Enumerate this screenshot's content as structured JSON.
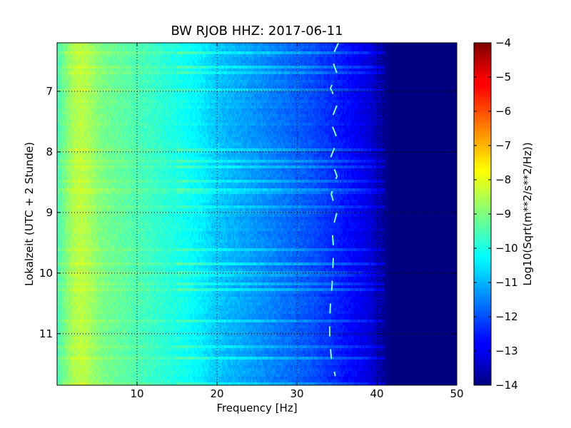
{
  "chart_data": {
    "type": "heatmap",
    "title": "BW RJOB HHZ: 2017-06-11",
    "xlabel": "Frequency [Hz]",
    "ylabel": "Lokalzeit (UTC + 2 Stunde)",
    "xlim": [
      0,
      50
    ],
    "ylim": [
      6.2,
      11.85
    ],
    "y_inverted": true,
    "x_ticks": [
      10,
      20,
      30,
      40,
      50
    ],
    "y_ticks": [
      7,
      8,
      9,
      10,
      11
    ],
    "grid": true,
    "colorbar": {
      "label": "Log10(Sqrt(m**2/s**2/Hz))",
      "range": [
        -14,
        -4
      ],
      "ticks": [
        -4,
        -5,
        -6,
        -7,
        -8,
        -9,
        -10,
        -11,
        -12,
        -13,
        -14
      ],
      "colormap": "jet"
    },
    "spectral_profile": {
      "frequency_hz": [
        0,
        1,
        2,
        3,
        4,
        5,
        6,
        8,
        10,
        12,
        14,
        16,
        18,
        20,
        22,
        24,
        26,
        28,
        30,
        32,
        34,
        36,
        38,
        39,
        40,
        41,
        42,
        45,
        50
      ],
      "log_amplitude": [
        -9.6,
        -9.1,
        -8.6,
        -8.4,
        -8.6,
        -8.9,
        -9.1,
        -9.3,
        -9.5,
        -9.7,
        -9.9,
        -10.1,
        -10.4,
        -10.8,
        -11.0,
        -11.2,
        -11.4,
        -11.6,
        -11.8,
        -12.0,
        -12.3,
        -12.6,
        -12.9,
        -13.1,
        -13.4,
        -13.8,
        -14.0,
        -14.0,
        -14.0
      ]
    },
    "narrowband_signal": {
      "description_hz": "wandering line near 34 Hz",
      "times": [
        6.2,
        6.45,
        6.7,
        6.95,
        7.2,
        7.5,
        7.8,
        8.1,
        8.4,
        8.7,
        9.0,
        9.3,
        9.6,
        9.9,
        10.2,
        10.5,
        10.8,
        11.1,
        11.4,
        11.7
      ],
      "frequency_hz": [
        35.2,
        34.3,
        35.0,
        34.2,
        35.1,
        34.2,
        35.1,
        34.2,
        35.0,
        34.3,
        35.0,
        34.4,
        34.6,
        34.5,
        34.4,
        34.2,
        34.1,
        34.1,
        34.3,
        34.8
      ]
    }
  }
}
